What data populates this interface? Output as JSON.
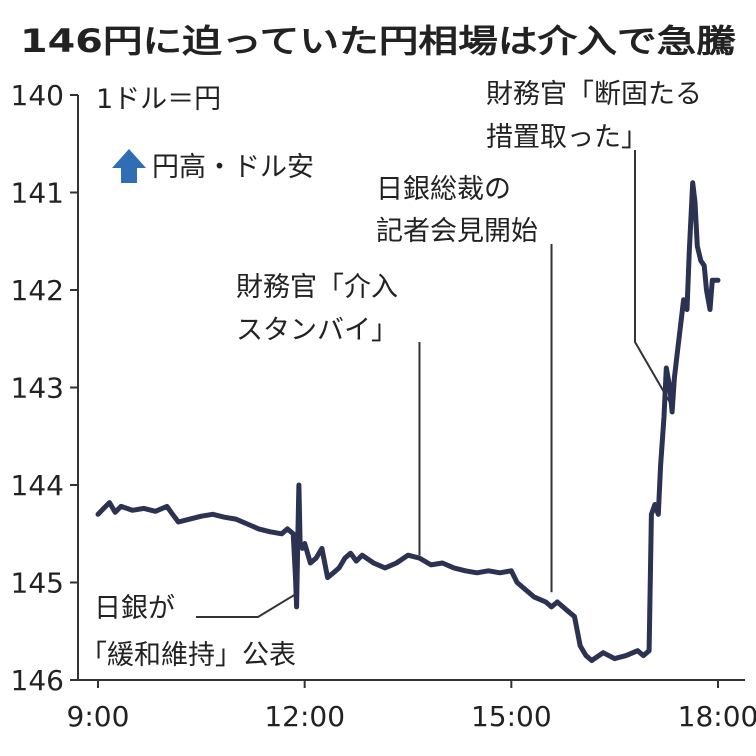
{
  "chart_data": {
    "type": "line",
    "title": "146円に迫っていた円相場は介入で急騰",
    "unit_label": "1ドル＝円",
    "legend": {
      "label": "円高・ドル安",
      "marker_color": "#2f6db5",
      "marker_shape": "up-arrow"
    },
    "y_axis": {
      "inverted": true,
      "ylim": [
        140,
        146
      ],
      "ticks": [
        "140",
        "141",
        "142",
        "143",
        "144",
        "145",
        "146"
      ]
    },
    "x_axis": {
      "xlim": [
        "9:00",
        "18:00"
      ],
      "ticks": [
        "9:00",
        "12:00",
        "15:00",
        "18:00"
      ]
    },
    "line_color": "#2b3252",
    "series": [
      {
        "points": [
          [
            "9:00",
            144.3
          ],
          [
            "9:05",
            144.24
          ],
          [
            "9:10",
            144.18
          ],
          [
            "9:15",
            144.28
          ],
          [
            "9:20",
            144.22
          ],
          [
            "9:30",
            144.26
          ],
          [
            "9:40",
            144.24
          ],
          [
            "9:50",
            144.27
          ],
          [
            "10:00",
            144.22
          ],
          [
            "10:05",
            144.3
          ],
          [
            "10:10",
            144.38
          ],
          [
            "10:20",
            144.35
          ],
          [
            "10:30",
            144.32
          ],
          [
            "10:40",
            144.3
          ],
          [
            "10:50",
            144.33
          ],
          [
            "11:00",
            144.35
          ],
          [
            "11:10",
            144.4
          ],
          [
            "11:20",
            144.45
          ],
          [
            "11:30",
            144.48
          ],
          [
            "11:40",
            144.5
          ],
          [
            "11:45",
            144.45
          ],
          [
            "11:50",
            144.5
          ],
          [
            "11:52",
            144.95
          ],
          [
            "11:53",
            145.25
          ],
          [
            "11:54",
            144.55
          ],
          [
            "11:55",
            144.0
          ],
          [
            "11:56",
            144.6
          ],
          [
            "11:58",
            144.65
          ],
          [
            "12:00",
            144.6
          ],
          [
            "12:05",
            144.8
          ],
          [
            "12:10",
            144.75
          ],
          [
            "12:15",
            144.65
          ],
          [
            "12:20",
            144.95
          ],
          [
            "12:25",
            144.9
          ],
          [
            "12:30",
            144.85
          ],
          [
            "12:35",
            144.75
          ],
          [
            "12:40",
            144.7
          ],
          [
            "12:45",
            144.78
          ],
          [
            "12:50",
            144.72
          ],
          [
            "13:00",
            144.8
          ],
          [
            "13:10",
            144.85
          ],
          [
            "13:20",
            144.8
          ],
          [
            "13:30",
            144.72
          ],
          [
            "13:40",
            144.75
          ],
          [
            "13:50",
            144.82
          ],
          [
            "14:00",
            144.8
          ],
          [
            "14:10",
            144.85
          ],
          [
            "14:20",
            144.88
          ],
          [
            "14:30",
            144.9
          ],
          [
            "14:40",
            144.88
          ],
          [
            "14:50",
            144.9
          ],
          [
            "15:00",
            144.88
          ],
          [
            "15:05",
            145.0
          ],
          [
            "15:10",
            145.05
          ],
          [
            "15:20",
            145.15
          ],
          [
            "15:30",
            145.2
          ],
          [
            "15:35",
            145.25
          ],
          [
            "15:40",
            145.2
          ],
          [
            "15:45",
            145.25
          ],
          [
            "15:50",
            145.3
          ],
          [
            "15:55",
            145.35
          ],
          [
            "16:00",
            145.65
          ],
          [
            "16:05",
            145.75
          ],
          [
            "16:10",
            145.8
          ],
          [
            "16:20",
            145.72
          ],
          [
            "16:30",
            145.78
          ],
          [
            "16:40",
            145.75
          ],
          [
            "16:50",
            145.7
          ],
          [
            "16:55",
            145.75
          ],
          [
            "17:00",
            145.7
          ],
          [
            "17:02",
            144.3
          ],
          [
            "17:05",
            144.2
          ],
          [
            "17:08",
            144.3
          ],
          [
            "17:10",
            143.8
          ],
          [
            "17:13",
            143.3
          ],
          [
            "17:15",
            142.8
          ],
          [
            "17:18",
            143.0
          ],
          [
            "17:20",
            143.25
          ],
          [
            "17:22",
            142.9
          ],
          [
            "17:25",
            142.6
          ],
          [
            "17:28",
            142.3
          ],
          [
            "17:30",
            142.1
          ],
          [
            "17:33",
            142.2
          ],
          [
            "17:35",
            141.6
          ],
          [
            "17:38",
            140.9
          ],
          [
            "17:40",
            141.1
          ],
          [
            "17:42",
            141.55
          ],
          [
            "17:45",
            141.7
          ],
          [
            "17:48",
            141.75
          ],
          [
            "17:50",
            142.0
          ],
          [
            "17:53",
            142.2
          ],
          [
            "17:55",
            141.9
          ],
          [
            "18:00",
            141.9
          ]
        ]
      }
    ],
    "annotations": [
      {
        "lines": [
          "日銀が",
          "「緩和維持」公表"
        ],
        "time": "11:55",
        "value": 145.1
      },
      {
        "lines": [
          "財務官「介入",
          "スタンバイ」"
        ],
        "time": "13:40",
        "value": 144.72
      },
      {
        "lines": [
          "日銀総裁の",
          "記者会見開始"
        ],
        "time": "15:35",
        "value": 145.1
      },
      {
        "lines": [
          "財務官「断固たる",
          "措置取った」"
        ],
        "time": "17:18",
        "value": 143.15
      }
    ]
  }
}
